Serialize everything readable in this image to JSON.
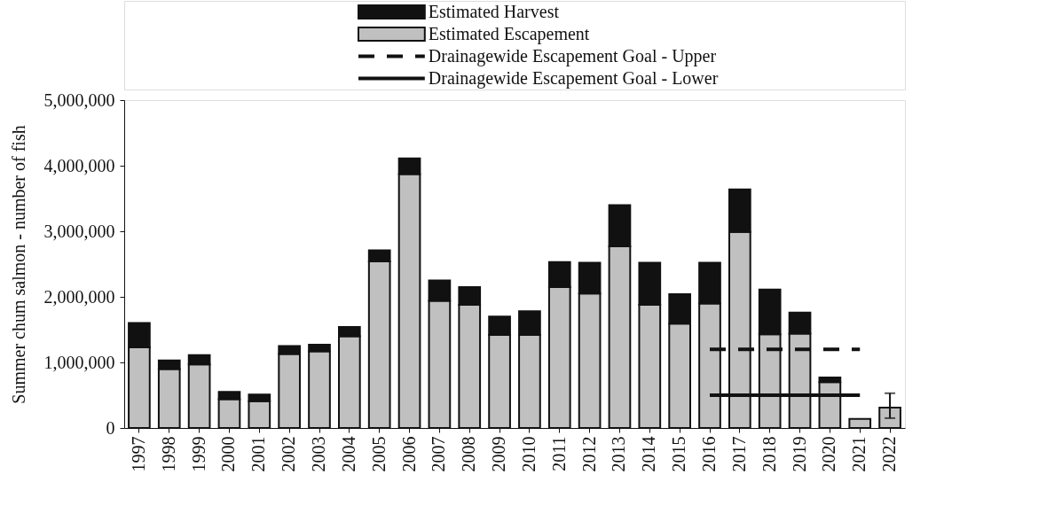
{
  "chart_data": {
    "type": "bar",
    "stacked": true,
    "ylabel": "Summer chum salmon - number of fish",
    "categories": [
      "1997",
      "1998",
      "1999",
      "2000",
      "2001",
      "2002",
      "2003",
      "2004",
      "2005",
      "2006",
      "2007",
      "2008",
      "2009",
      "2010",
      "2011",
      "2012",
      "2013",
      "2014",
      "2015",
      "2016",
      "2017",
      "2018",
      "2019",
      "2020",
      "2021",
      "2022"
    ],
    "series": [
      {
        "name": "Estimated Escapement",
        "color": "#c0c0c0",
        "values": [
          1230000,
          900000,
          970000,
          440000,
          410000,
          1130000,
          1170000,
          1400000,
          2540000,
          3870000,
          1940000,
          1880000,
          1420000,
          1420000,
          2150000,
          2050000,
          2770000,
          1880000,
          1590000,
          1900000,
          2990000,
          1430000,
          1440000,
          700000,
          140000,
          310000
        ],
        "errors": [
          null,
          null,
          null,
          null,
          null,
          null,
          null,
          null,
          null,
          null,
          null,
          null,
          null,
          null,
          null,
          null,
          null,
          null,
          null,
          null,
          null,
          null,
          null,
          null,
          null,
          [
            150000,
            530000
          ]
        ]
      },
      {
        "name": "Estimated Harvest",
        "color": "#111111",
        "values": [
          370000,
          130000,
          140000,
          110000,
          100000,
          120000,
          100000,
          140000,
          170000,
          240000,
          310000,
          270000,
          280000,
          360000,
          380000,
          470000,
          630000,
          640000,
          450000,
          620000,
          650000,
          680000,
          320000,
          70000,
          null,
          null
        ]
      },
      {
        "name": "Drainagewide Escapement Goal - Upper",
        "type": "line",
        "line_style": "dashed",
        "color": "#111111",
        "values": [
          null,
          null,
          null,
          null,
          null,
          null,
          null,
          null,
          null,
          null,
          null,
          null,
          null,
          null,
          null,
          null,
          null,
          null,
          null,
          1200000,
          1200000,
          1200000,
          1200000,
          1200000,
          1200000,
          null
        ]
      },
      {
        "name": "Drainagewide Escapement Goal - Lower",
        "type": "line",
        "line_style": "solid",
        "color": "#111111",
        "values": [
          null,
          null,
          null,
          null,
          null,
          null,
          null,
          null,
          null,
          null,
          null,
          null,
          null,
          null,
          null,
          null,
          null,
          null,
          null,
          500000,
          500000,
          500000,
          500000,
          500000,
          500000,
          null
        ]
      }
    ],
    "ylim": [
      0,
      5000000
    ],
    "yticks": [
      0,
      {
        "value": 1000000,
        "label": "1,000,000"
      },
      {
        "value": 2000000,
        "label": "2,000,000"
      },
      {
        "value": 3000000,
        "label": "3,000,000"
      },
      {
        "value": 4000000,
        "label": "4,000,000"
      },
      {
        "value": 5000000,
        "label": "5,000,000"
      }
    ],
    "grid": false,
    "legend": "top"
  }
}
